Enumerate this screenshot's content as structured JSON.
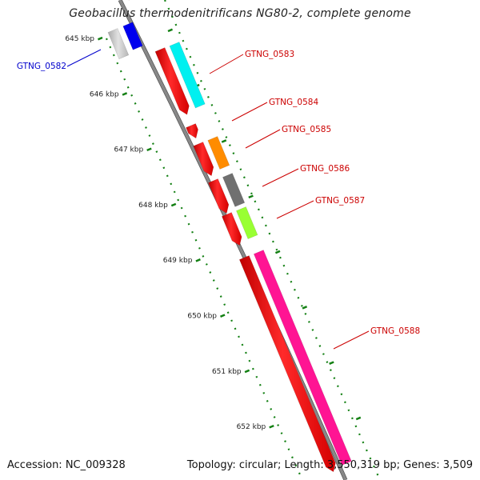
{
  "title": "Geobacillus thermodenitrificans NG80-2, complete genome",
  "footer": {
    "accession": "Accession: NC_009328",
    "summary": "Topology: circular; Length: 3,550,319 bp; Genes: 3,509"
  },
  "colors": {
    "backbone": "#888888",
    "tick": "#138013",
    "forward_label": "#cc0000",
    "reverse_label": "#0000cc",
    "cds": "#ff0000"
  },
  "ticks": [
    {
      "label": "645 kbp"
    },
    {
      "label": "646 kbp"
    },
    {
      "label": "647 kbp"
    },
    {
      "label": "648 kbp"
    },
    {
      "label": "649 kbp"
    },
    {
      "label": "650 kbp"
    },
    {
      "label": "651 kbp"
    },
    {
      "label": "652 kbp"
    }
  ],
  "genes": [
    {
      "name": "GTNG_0582",
      "strand": "reverse",
      "label_color": "#0000cc",
      "cog_color": "#0000ee"
    },
    {
      "name": "GTNG_0583",
      "strand": "forward",
      "label_color": "#cc0000",
      "cog_color": "#00f0f0"
    },
    {
      "name": "GTNG_0584",
      "strand": "forward",
      "label_color": "#cc0000",
      "cog_color": ""
    },
    {
      "name": "GTNG_0585",
      "strand": "forward",
      "label_color": "#cc0000",
      "cog_color": "#ff8c00"
    },
    {
      "name": "GTNG_0586",
      "strand": "forward",
      "label_color": "#cc0000",
      "cog_color": "#707070"
    },
    {
      "name": "GTNG_0587",
      "strand": "forward",
      "label_color": "#cc0000",
      "cog_color": "#99ff33"
    },
    {
      "name": "GTNG_0588",
      "strand": "forward",
      "label_color": "#cc0000",
      "cog_color": "#ff1493"
    }
  ]
}
